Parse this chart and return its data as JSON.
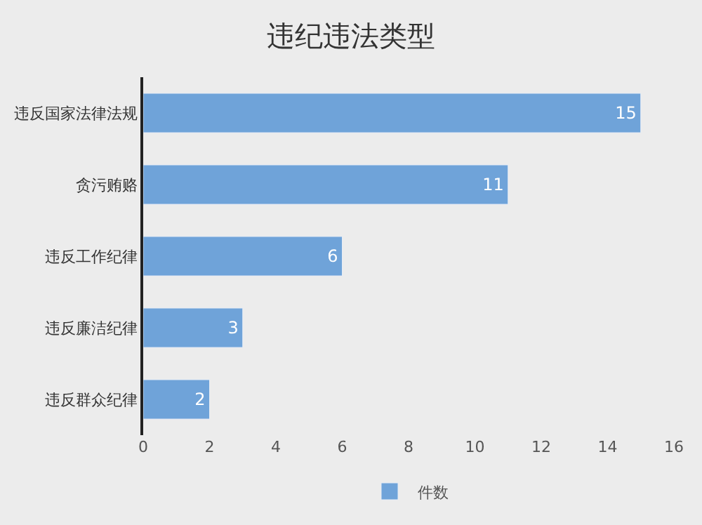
{
  "chart_data": {
    "type": "bar",
    "orientation": "horizontal",
    "title": "违纪违法类型",
    "categories": [
      "违反国家法律法规",
      "贪污贿赂",
      "违反工作纪律",
      "违反廉洁纪律",
      "违反群众纪律"
    ],
    "series": [
      {
        "name": "件数",
        "color": "#6fa3d9",
        "values": [
          15,
          11,
          6,
          3,
          2
        ]
      }
    ],
    "xlim": [
      0,
      16
    ],
    "xticks": [
      0,
      2,
      4,
      6,
      8,
      10,
      12,
      14,
      16
    ],
    "data_labels": true,
    "grid": false,
    "legend": "bottom"
  }
}
